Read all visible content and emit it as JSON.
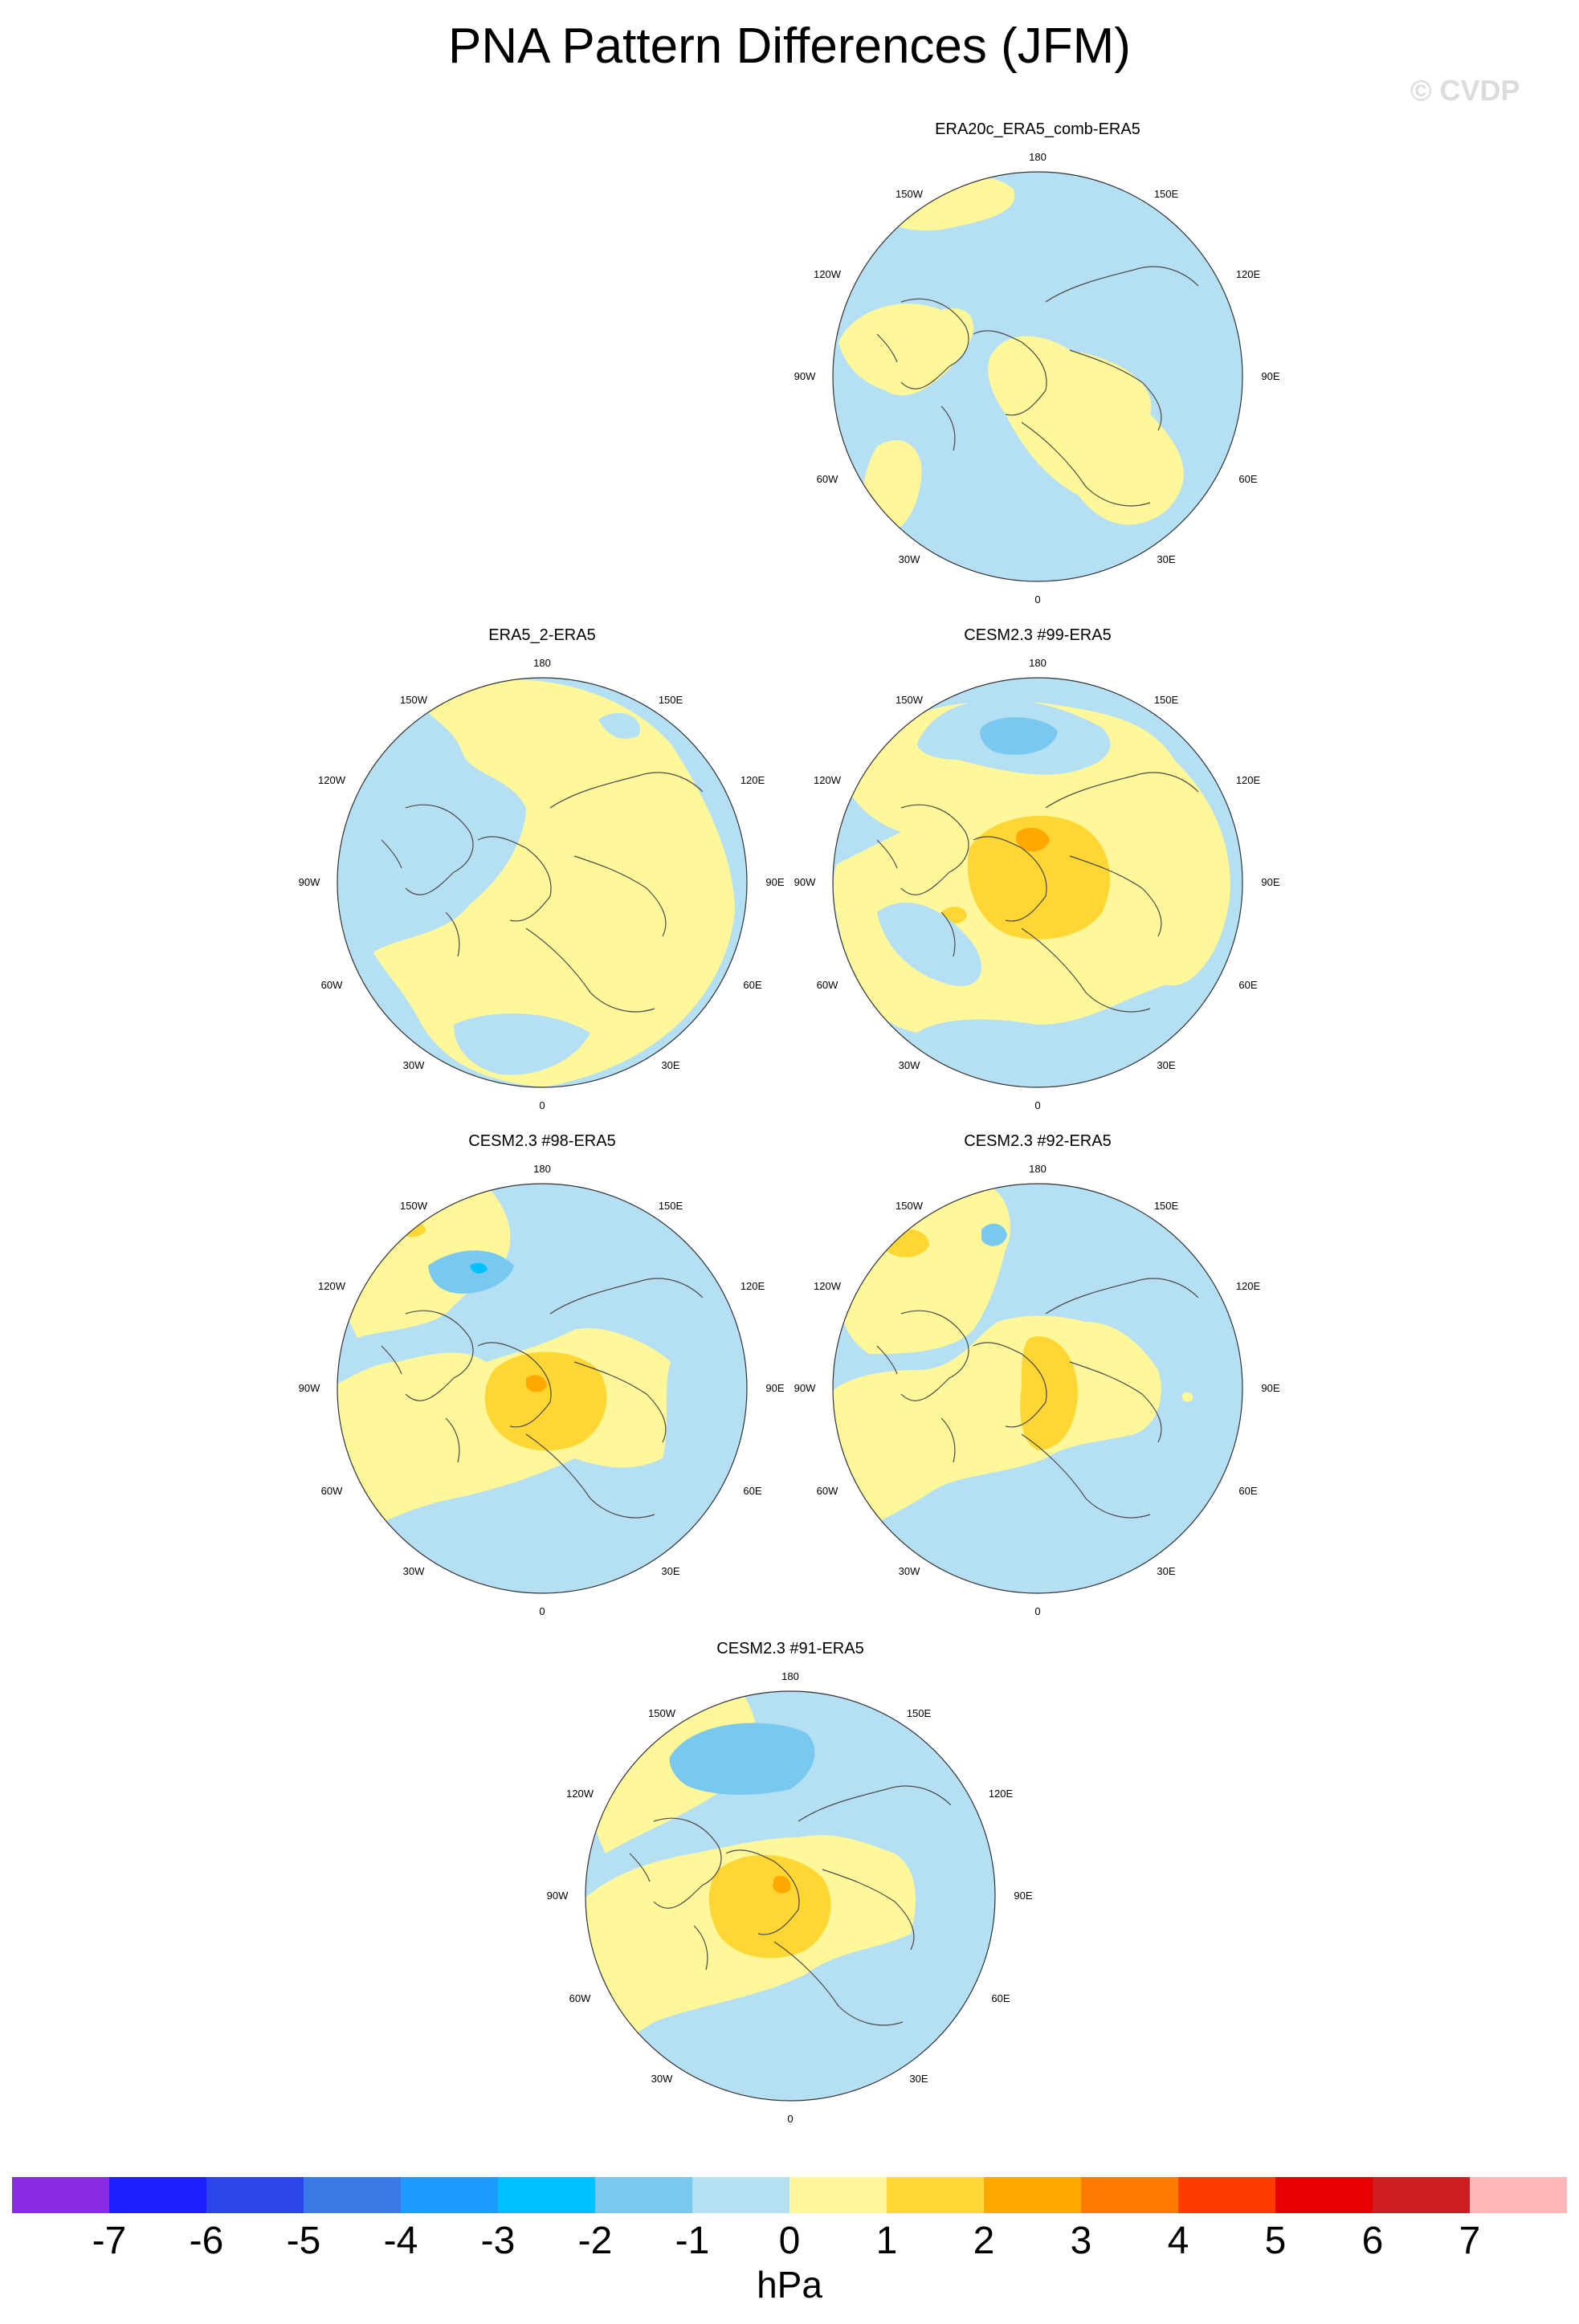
{
  "title": "PNA Pattern Differences (JFM)",
  "watermark": "© CVDP",
  "colorbar": {
    "colors": [
      "#8a2be2",
      "#1f1fff",
      "#2a46e8",
      "#3a7ae6",
      "#1e9bff",
      "#00c0ff",
      "#78c8f0",
      "#b5dff3",
      "#fff89a",
      "#ffd633",
      "#ffa800",
      "#ff7a00",
      "#ff3b00",
      "#e80000",
      "#cc1e1e",
      "#ffb6b9"
    ],
    "ticks": [
      "-7",
      "-6",
      "-5",
      "-4",
      "-3",
      "-2",
      "-1",
      "0",
      "1",
      "2",
      "3",
      "4",
      "5",
      "6",
      "7"
    ],
    "units": "hPa"
  },
  "lon_labels": {
    "top": "180",
    "bottom": "0",
    "left": "90W",
    "right": "90E",
    "upper_left": "150W",
    "upper_right": "150E",
    "mid_upper_left": "120W",
    "mid_upper_right": "120E",
    "mid_lower_left": "60W",
    "mid_lower_right": "60E",
    "lower_left": "30W",
    "lower_right": "30E"
  },
  "panels": [
    {
      "title": "ERA20c_ERA5_comb-ERA5",
      "variant": 0
    },
    {
      "title": "ERA5_2-ERA5",
      "variant": 1
    },
    {
      "title": "CESM2.3 #99-ERA5",
      "variant": 2
    },
    {
      "title": "CESM2.3 #98-ERA5",
      "variant": 3
    },
    {
      "title": "CESM2.3 #92-ERA5",
      "variant": 4
    },
    {
      "title": "CESM2.3 #91-ERA5",
      "variant": 5
    }
  ]
}
